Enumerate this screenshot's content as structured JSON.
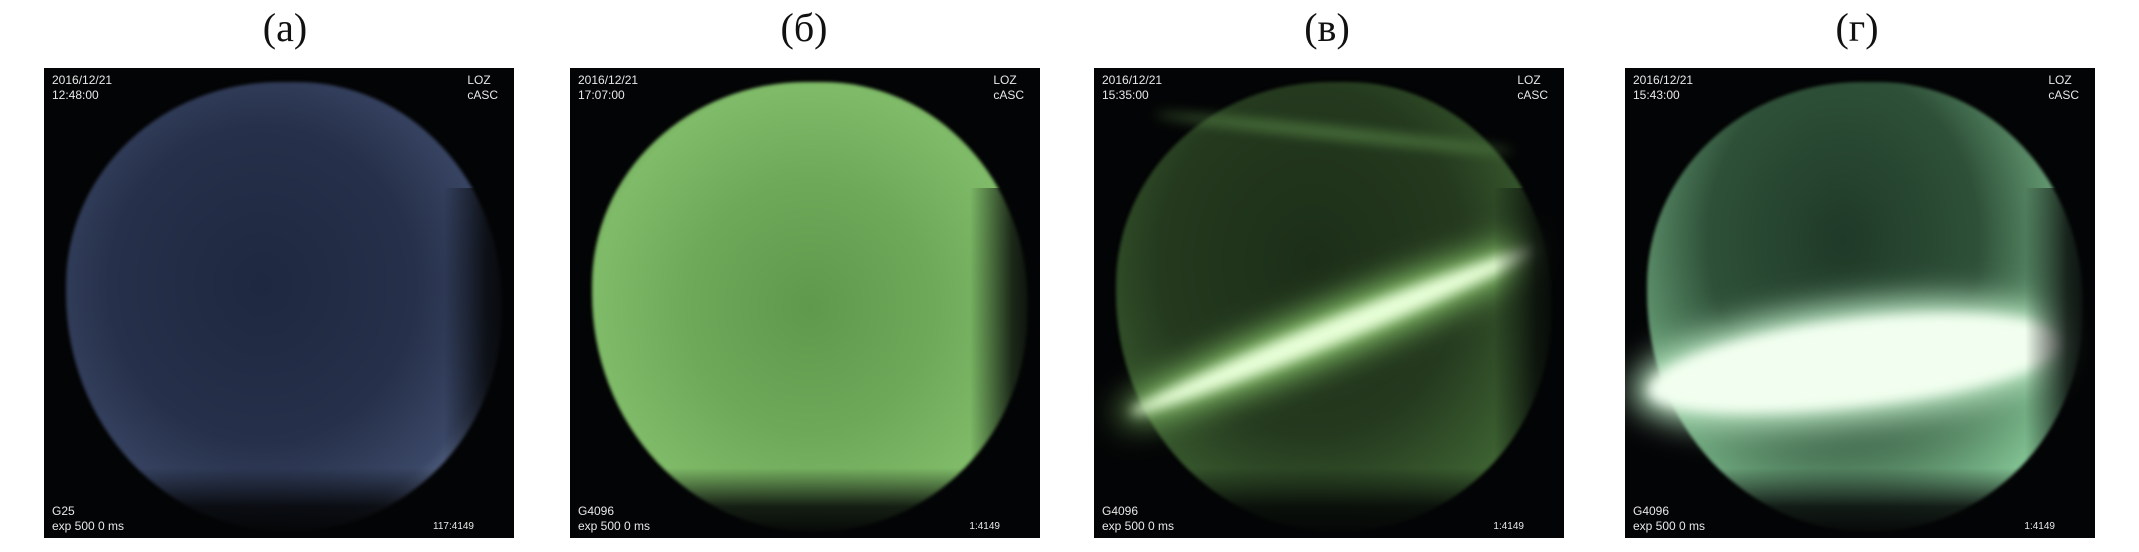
{
  "panels": [
    {
      "label": "(а)",
      "date": "2016/12/21",
      "time": "12:48:00",
      "station": "LOZ",
      "camera": "cASC",
      "gain": "G25",
      "exposure": "exp 500 0 ms",
      "frame": "117:4149"
    },
    {
      "label": "(б)",
      "date": "2016/12/21",
      "time": "17:07:00",
      "station": "LOZ",
      "camera": "cASC",
      "gain": "G4096",
      "exposure": "exp 500 0 ms",
      "frame": "1:4149"
    },
    {
      "label": "(в)",
      "date": "2016/12/21",
      "time": "15:35:00",
      "station": "LOZ",
      "camera": "cASC",
      "gain": "G4096",
      "exposure": "exp 500 0 ms",
      "frame": "1:4149"
    },
    {
      "label": "(г)",
      "date": "2016/12/21",
      "time": "15:43:00",
      "station": "LOZ",
      "camera": "cASC",
      "gain": "G4096",
      "exposure": "exp 500 0 ms",
      "frame": "1:4149"
    }
  ],
  "colors": {
    "twilight_sky": "#2a3550",
    "aurora_green": "#7fc46a",
    "aurora_bright": "#eaffdc",
    "background": "#030405"
  }
}
